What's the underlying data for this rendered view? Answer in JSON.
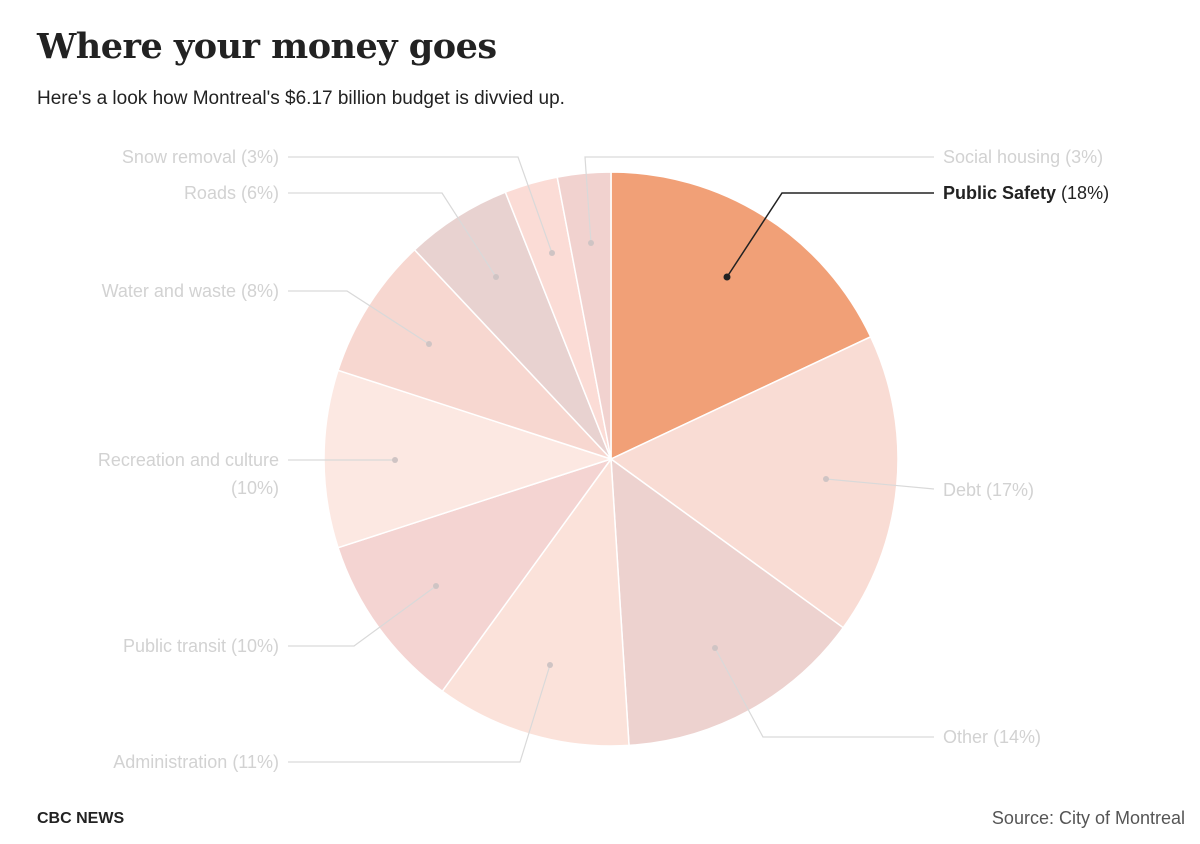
{
  "header": {
    "title": "Where your money goes",
    "subtitle": "Here's a look how Montreal's $6.17 billion budget is divvied up."
  },
  "footer": {
    "brand": "CBC NEWS",
    "source": "Source: City of Montreal"
  },
  "colors": {
    "highlight": "#f1a077",
    "label_muted": "#d2d2d2",
    "label_active": "#222222"
  },
  "chart_data": {
    "type": "pie",
    "title": "Where your money goes",
    "subtitle": "Here's a look how Montreal's $6.17 billion budget is divvied up.",
    "unit": "%",
    "highlighted": "Public Safety",
    "slices": [
      {
        "name": "Public Safety",
        "value": 18,
        "pct_label": "(18%)",
        "color": "#f1a077"
      },
      {
        "name": "Debt",
        "value": 17,
        "pct_label": "(17%)",
        "color": "#f9dcd4"
      },
      {
        "name": "Other",
        "value": 14,
        "pct_label": "(14%)",
        "color": "#edd2cf"
      },
      {
        "name": "Administration",
        "value": 11,
        "pct_label": "(11%)",
        "color": "#fbe2da"
      },
      {
        "name": "Public transit",
        "value": 10,
        "pct_label": "(10%)",
        "color": "#f4d4d2"
      },
      {
        "name": "Recreation and culture",
        "value": 10,
        "pct_label": "(10%)",
        "color": "#fce8e2"
      },
      {
        "name": "Water and waste",
        "value": 8,
        "pct_label": "(8%)",
        "color": "#f7d7d0"
      },
      {
        "name": "Roads",
        "value": 6,
        "pct_label": "(6%)",
        "color": "#e8d2d0"
      },
      {
        "name": "Snow removal",
        "value": 3,
        "pct_label": "(3%)",
        "color": "#fbdcd6"
      },
      {
        "name": "Social housing",
        "value": 3,
        "pct_label": "(3%)",
        "color": "#f1d2cf"
      }
    ]
  }
}
